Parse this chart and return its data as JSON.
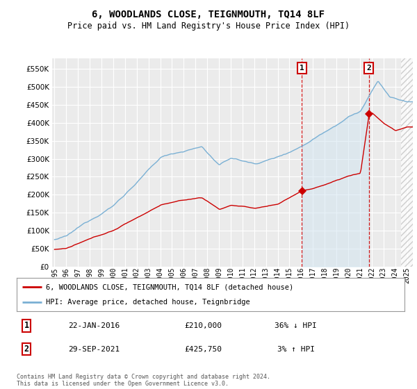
{
  "title": "6, WOODLANDS CLOSE, TEIGNMOUTH, TQ14 8LF",
  "subtitle": "Price paid vs. HM Land Registry's House Price Index (HPI)",
  "ylim": [
    0,
    580000
  ],
  "yticks": [
    0,
    50000,
    100000,
    150000,
    200000,
    250000,
    300000,
    350000,
    400000,
    450000,
    500000,
    550000
  ],
  "ytick_labels": [
    "£0",
    "£50K",
    "£100K",
    "£150K",
    "£200K",
    "£250K",
    "£300K",
    "£350K",
    "£400K",
    "£450K",
    "£500K",
    "£550K"
  ],
  "background_color": "#ffffff",
  "plot_bg_color": "#ebebeb",
  "grid_color": "#ffffff",
  "hpi_color": "#7ab0d4",
  "price_color": "#cc0000",
  "hpi_fill_color": "#d0e4f0",
  "sale1_x": 2016.06,
  "sale1_price": 210000,
  "sale2_x": 2021.75,
  "sale2_price": 425750,
  "xmin": 1994.8,
  "xmax": 2025.5,
  "xtick_years": [
    1995,
    1996,
    1997,
    1998,
    1999,
    2000,
    2001,
    2002,
    2003,
    2004,
    2005,
    2006,
    2007,
    2008,
    2009,
    2010,
    2011,
    2012,
    2013,
    2014,
    2015,
    2016,
    2017,
    2018,
    2019,
    2020,
    2021,
    2022,
    2023,
    2024,
    2025
  ],
  "legend_property_label": "6, WOODLANDS CLOSE, TEIGNMOUTH, TQ14 8LF (detached house)",
  "legend_hpi_label": "HPI: Average price, detached house, Teignbridge",
  "annotation1_date": "22-JAN-2016",
  "annotation1_price": "£210,000",
  "annotation1_hpi": "36% ↓ HPI",
  "annotation2_date": "29-SEP-2021",
  "annotation2_price": "£425,750",
  "annotation2_hpi": "3% ↑ HPI",
  "footer": "Contains HM Land Registry data © Crown copyright and database right 2024.\nThis data is licensed under the Open Government Licence v3.0.",
  "hatch_start": 2024.5
}
